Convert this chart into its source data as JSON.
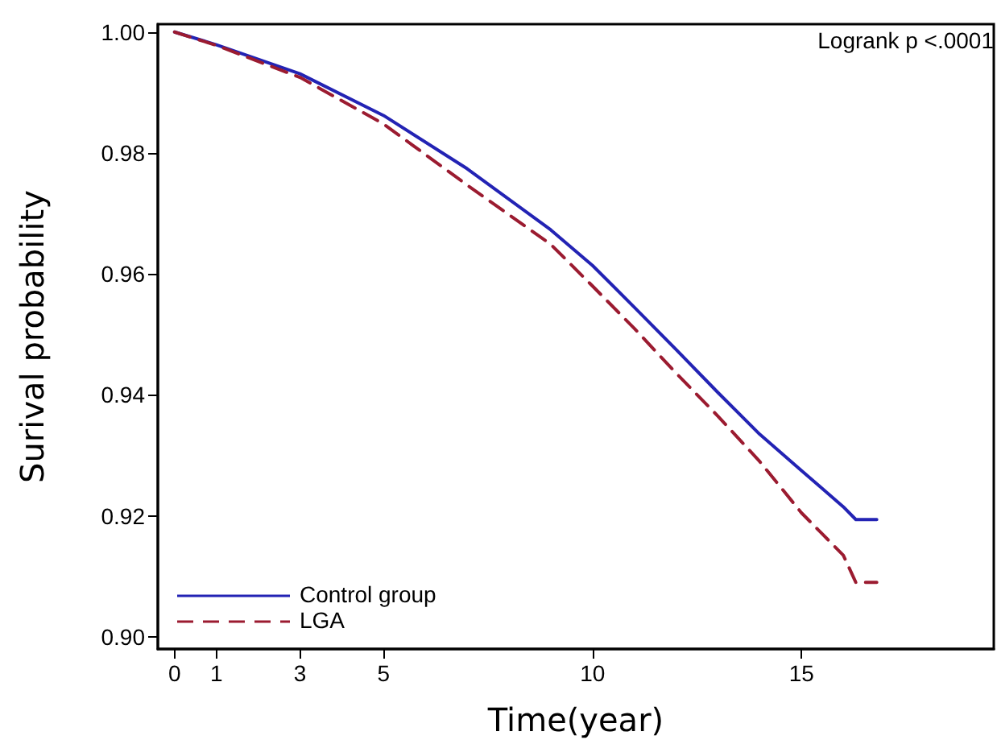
{
  "chart_data": {
    "type": "line",
    "xlabel": "Time(year)",
    "ylabel": "Surival probability",
    "annotations": [
      "Logrank p <.0001"
    ],
    "series": [
      {
        "name": "Control group",
        "color": "#2323b4",
        "line_style": "solid",
        "x": [
          0,
          1,
          3,
          5,
          7,
          9,
          10,
          11,
          12,
          13,
          14,
          15,
          16,
          16.3,
          16.8
        ],
        "values": [
          1.0,
          0.9979,
          0.9931,
          0.9862,
          0.9774,
          0.9673,
          0.9614,
          0.9545,
          0.9475,
          0.9404,
          0.9335,
          0.9275,
          0.9215,
          0.9194,
          0.9194
        ]
      },
      {
        "name": "LGA",
        "color": "#9b1b30",
        "line_style": "dashed",
        "x": [
          0,
          1,
          3,
          5,
          7,
          9,
          10,
          11,
          12,
          13,
          14,
          15,
          16,
          16.3,
          16.8
        ],
        "values": [
          1.0,
          0.9978,
          0.9925,
          0.9848,
          0.9747,
          0.9649,
          0.958,
          0.951,
          0.9436,
          0.9365,
          0.929,
          0.9205,
          0.9135,
          0.909,
          0.909
        ]
      }
    ],
    "xlim": [
      -0.4,
      19.6
    ],
    "xticks": [
      0,
      1,
      3,
      5,
      10,
      15
    ],
    "ylim": [
      0.898,
      1.0013
    ],
    "yticks": [
      {
        "value": 0.9,
        "label": "0.90"
      },
      {
        "value": 0.92,
        "label": "0.92"
      },
      {
        "value": 0.94,
        "label": "0.94"
      },
      {
        "value": 0.96,
        "label": "0.96"
      },
      {
        "value": 0.98,
        "label": "0.98"
      },
      {
        "value": 1.0,
        "label": "1.00"
      }
    ],
    "grid": false,
    "legend": "bottom left",
    "marker": "none"
  }
}
